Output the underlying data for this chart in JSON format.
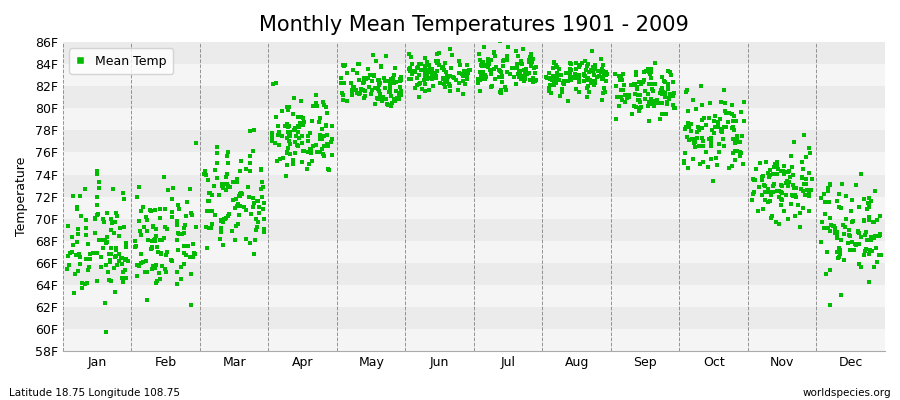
{
  "title": "Monthly Mean Temperatures 1901 - 2009",
  "ylabel": "Temperature",
  "subtitle_left": "Latitude 18.75 Longitude 108.75",
  "subtitle_right": "worldspecies.org",
  "ylim": [
    58,
    86
  ],
  "yticks": [
    58,
    60,
    62,
    64,
    66,
    68,
    70,
    72,
    74,
    76,
    78,
    80,
    82,
    84,
    86
  ],
  "ytick_labels": [
    "58F",
    "60F",
    "62F",
    "64F",
    "66F",
    "68F",
    "70F",
    "72F",
    "74F",
    "76F",
    "78F",
    "80F",
    "82F",
    "84F",
    "86F"
  ],
  "months": [
    "Jan",
    "Feb",
    "Mar",
    "Apr",
    "May",
    "Jun",
    "Jul",
    "Aug",
    "Sep",
    "Oct",
    "Nov",
    "Dec"
  ],
  "n_years": 109,
  "mean_temps_F": [
    67.5,
    67.8,
    71.5,
    77.5,
    82.2,
    83.2,
    83.4,
    82.8,
    81.5,
    77.5,
    73.0,
    69.2
  ],
  "std_temps_F": [
    2.6,
    2.3,
    2.5,
    1.8,
    1.1,
    0.9,
    0.8,
    0.8,
    1.1,
    2.0,
    1.8,
    2.2
  ],
  "marker_color": "#00bb00",
  "bg_color": "#ffffff",
  "band_color_light": "#f5f5f5",
  "band_color_dark": "#ebebeb",
  "legend_label": "Mean Temp",
  "title_fontsize": 15,
  "axis_fontsize": 9,
  "label_fontsize": 9,
  "marker_size": 3
}
